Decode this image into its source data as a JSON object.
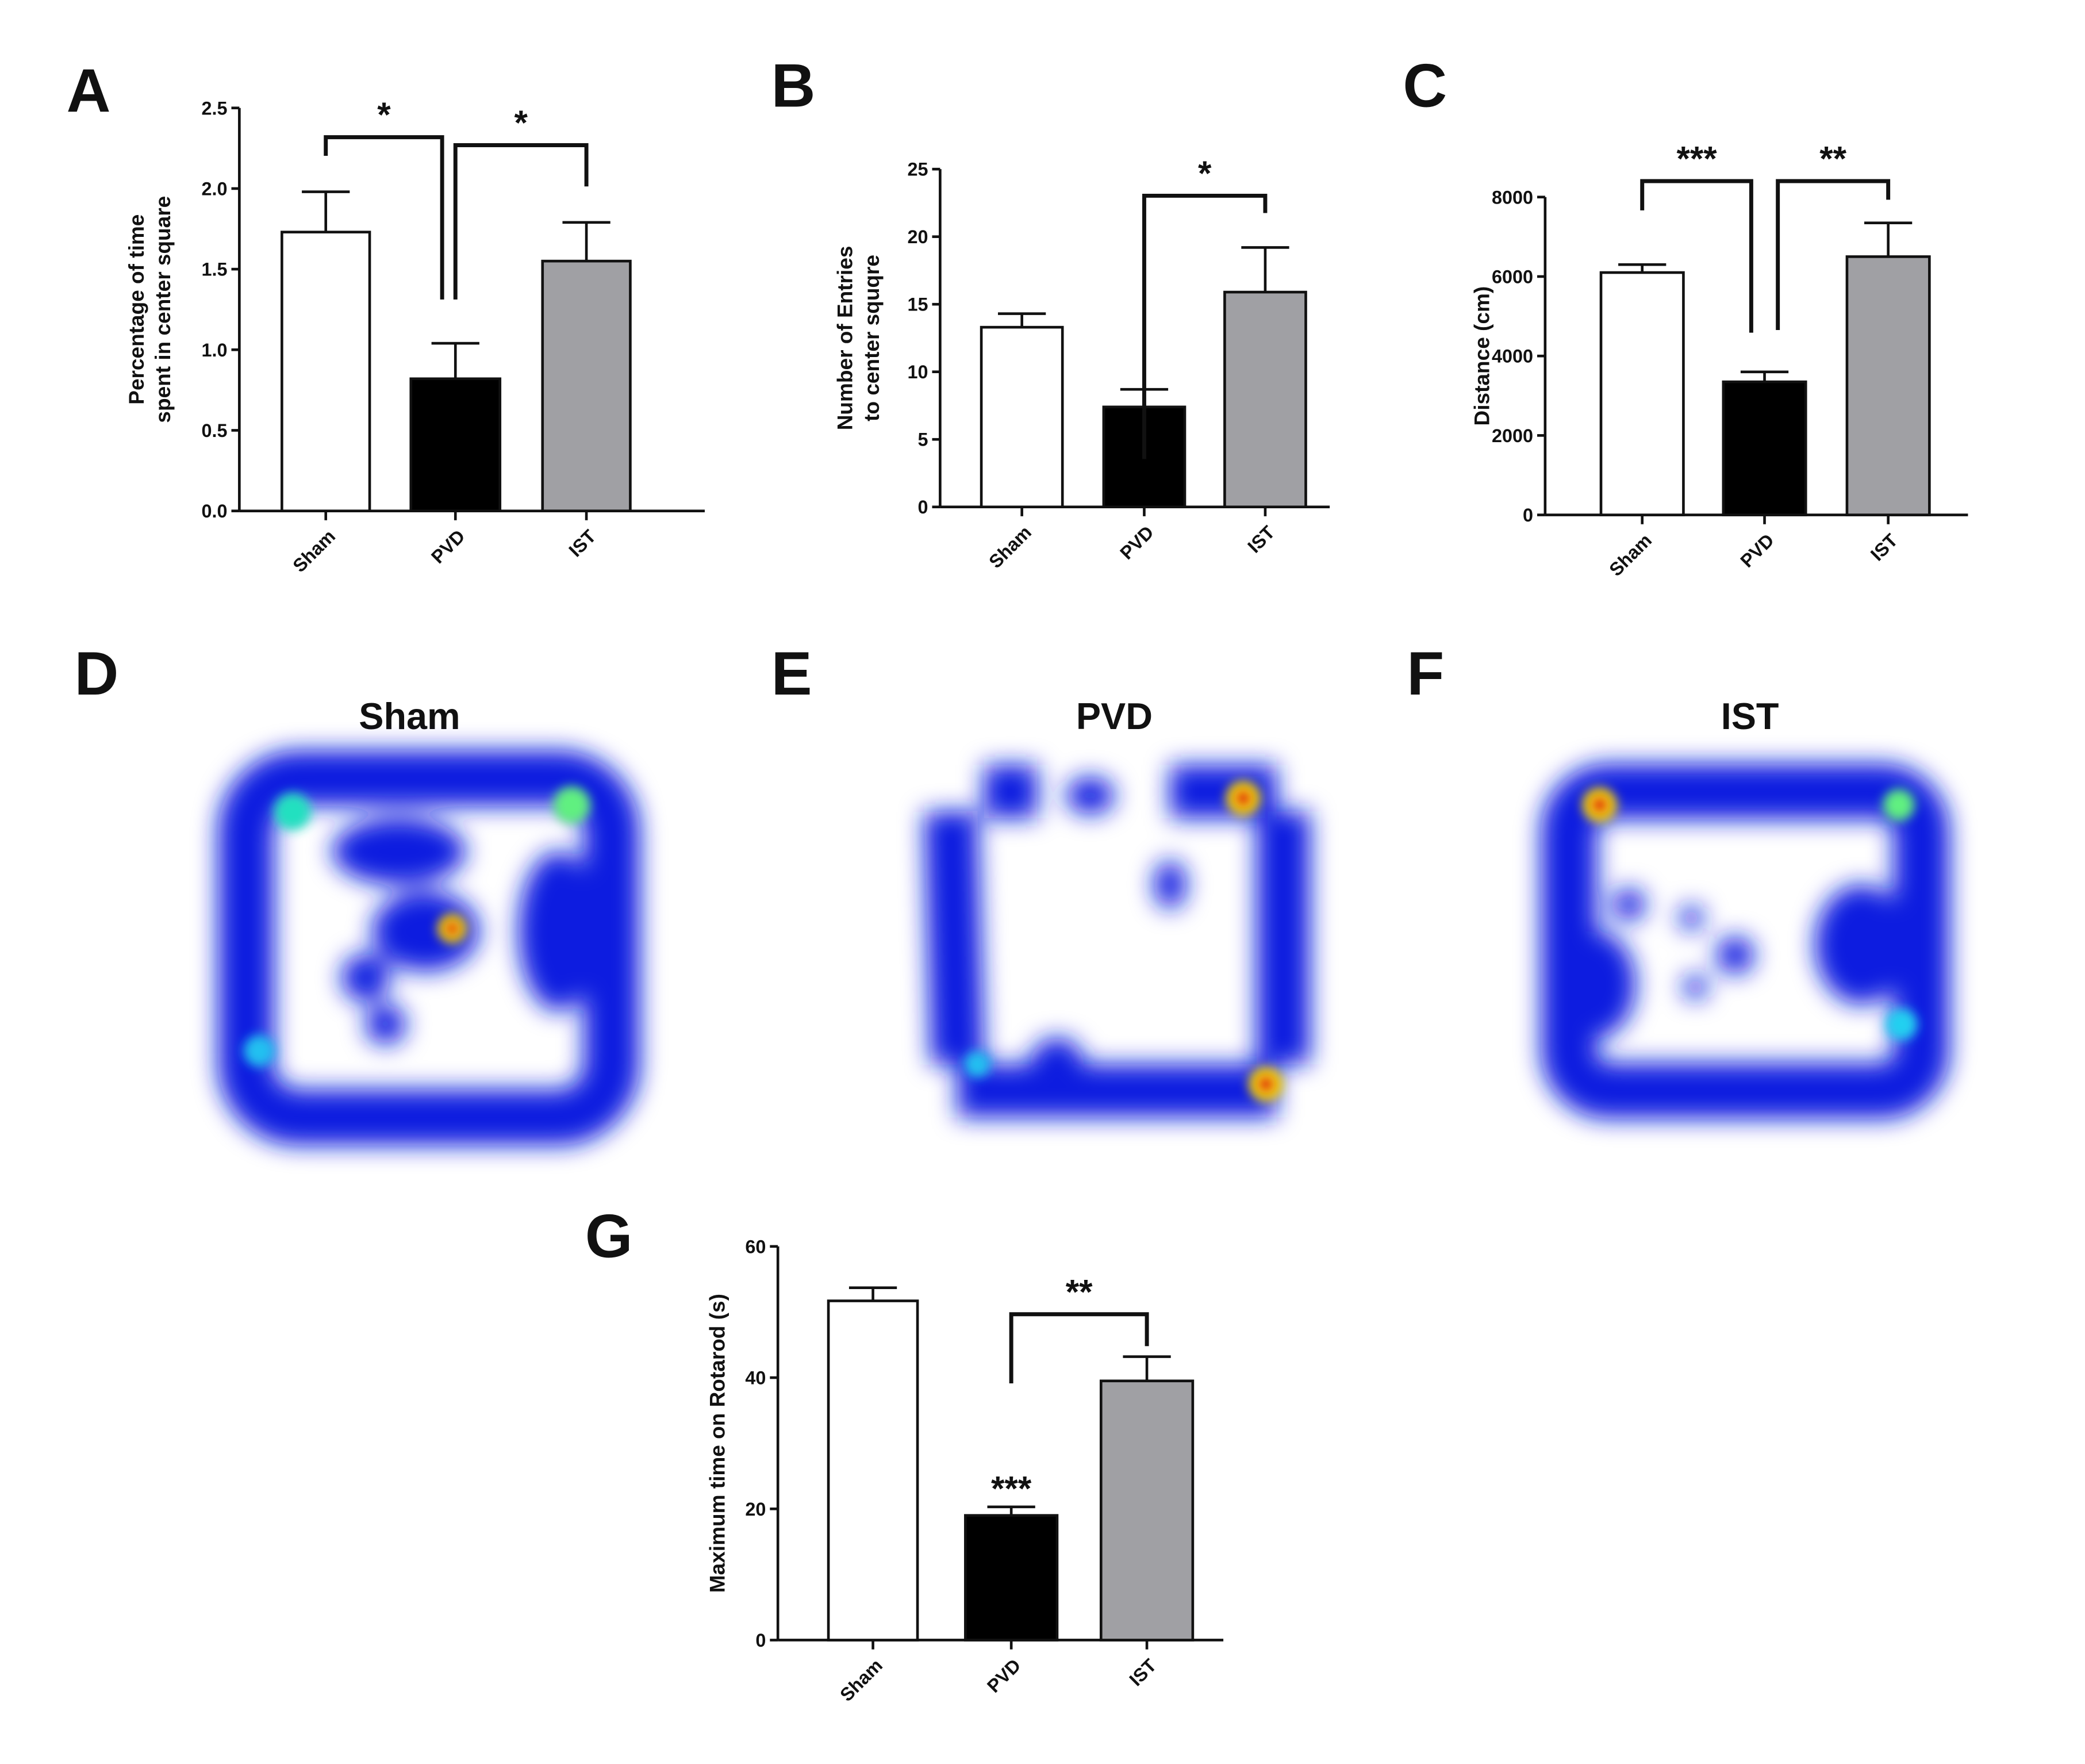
{
  "panels": {
    "A": "A",
    "B": "B",
    "C": "C",
    "D": "D",
    "E": "E",
    "F": "F",
    "G": "G"
  },
  "heatmap_titles": [
    "Sham",
    "PVD",
    "IST"
  ],
  "colors": {
    "sham": "#ffffff",
    "pvd": "#000000",
    "ist": "#a0a0a4",
    "heat_low": "#0a1ee0",
    "heat_high": "#e01010"
  },
  "chart_data": [
    {
      "id": "A",
      "type": "bar",
      "categories": [
        "Sham",
        "PVD",
        "IST"
      ],
      "values": [
        1.73,
        0.82,
        1.55
      ],
      "error_upper": [
        1.98,
        1.04,
        1.79
      ],
      "ylabel": [
        "Percentage of time",
        "spent in center square"
      ],
      "ylim": [
        0,
        2.5
      ],
      "yticks": [
        "0.0",
        "0.5",
        "1.0",
        "1.5",
        "2.0",
        "2.5"
      ],
      "significance": [
        {
          "from": "Sham",
          "to": "PVD",
          "label": "*"
        },
        {
          "from": "PVD",
          "to": "IST",
          "label": "*"
        }
      ]
    },
    {
      "id": "B",
      "type": "bar",
      "categories": [
        "Sham",
        "PVD",
        "IST"
      ],
      "values": [
        13.3,
        7.4,
        15.9
      ],
      "error_upper": [
        14.3,
        8.7,
        19.2
      ],
      "ylabel": [
        "Number of Entries",
        "to center squqre"
      ],
      "ylim": [
        0,
        25
      ],
      "yticks": [
        "0",
        "5",
        "10",
        "15",
        "20",
        "25"
      ],
      "significance": [
        {
          "from": "PVD",
          "to": "IST",
          "label": "*"
        }
      ]
    },
    {
      "id": "C",
      "type": "bar",
      "categories": [
        "Sham",
        "PVD",
        "IST"
      ],
      "values": [
        6100,
        3350,
        6500
      ],
      "error_upper": [
        6300,
        3600,
        7350
      ],
      "ylabel": [
        "Distance (cm)"
      ],
      "ylim": [
        0,
        8000
      ],
      "yticks": [
        "0",
        "2000",
        "4000",
        "6000",
        "8000"
      ],
      "significance": [
        {
          "from": "Sham",
          "to": "PVD",
          "label": "***"
        },
        {
          "from": "PVD",
          "to": "IST",
          "label": "**"
        }
      ]
    },
    {
      "id": "G",
      "type": "bar",
      "categories": [
        "Sham",
        "PVD",
        "IST"
      ],
      "values": [
        51.7,
        19.0,
        39.5
      ],
      "error_upper": [
        53.7,
        20.3,
        43.2
      ],
      "ylabel": [
        "Maximum time on Rotarod (s)"
      ],
      "ylim": [
        0,
        60
      ],
      "yticks": [
        "0",
        "20",
        "40",
        "60"
      ],
      "significance": [
        {
          "from": "PVD",
          "to": "IST",
          "label": "**"
        },
        {
          "over": "PVD",
          "label": "***"
        }
      ]
    }
  ]
}
